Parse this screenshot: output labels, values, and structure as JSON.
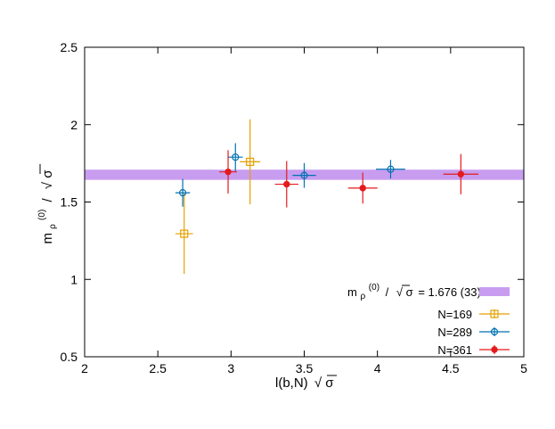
{
  "chart_data": {
    "type": "scatter",
    "xlabel": "l(b,N)",
    "xlabel_sqrt": "√",
    "xlabel_sigma": "σ",
    "ylabel_m": "m",
    "ylabel_sub": "ρ",
    "ylabel_sup": "(0)",
    "ylabel_slash": "/",
    "ylabel_sqrt": "√",
    "ylabel_sigma": "σ",
    "xlim": [
      2,
      5
    ],
    "ylim": [
      0.5,
      2.5
    ],
    "xticks": [
      "2",
      "2.5",
      "3",
      "3.5",
      "4",
      "4.5",
      "5"
    ],
    "yticks": [
      "0.5",
      "1",
      "1.5",
      "2",
      "2.5"
    ],
    "grid": false,
    "legend_position": "bottom-right",
    "band": {
      "label_m": "m",
      "label_sub": "ρ",
      "label_sup": "(0)",
      "label_slash": "/",
      "label_sqrt": "√",
      "label_sigma": "σ",
      "label_value": "= 1.676 (33)",
      "y": 1.676,
      "err": 0.033,
      "color": "#c89df0"
    },
    "series": [
      {
        "name": "N=169",
        "marker": "square-open",
        "color": "#e69f00",
        "points": [
          {
            "x": 2.68,
            "xerr": 0.06,
            "y": 1.295,
            "yerr": 0.26
          },
          {
            "x": 3.13,
            "xerr": 0.07,
            "y": 1.76,
            "yerr": 0.275
          }
        ]
      },
      {
        "name": "N=289",
        "marker": "circle-open",
        "color": "#0072b2",
        "points": [
          {
            "x": 2.67,
            "xerr": 0.05,
            "y": 1.56,
            "yerr": 0.09
          },
          {
            "x": 3.03,
            "xerr": 0.05,
            "y": 1.79,
            "yerr": 0.09
          },
          {
            "x": 3.5,
            "xerr": 0.08,
            "y": 1.672,
            "yerr": 0.08
          },
          {
            "x": 4.09,
            "xerr": 0.1,
            "y": 1.712,
            "yerr": 0.06
          }
        ]
      },
      {
        "name": "N=361",
        "marker": "circle-filled",
        "color": "#e41a1c",
        "points": [
          {
            "x": 2.98,
            "xerr": 0.06,
            "y": 1.695,
            "yerr": 0.14
          },
          {
            "x": 3.38,
            "xerr": 0.08,
            "y": 1.615,
            "yerr": 0.15
          },
          {
            "x": 3.9,
            "xerr": 0.1,
            "y": 1.59,
            "yerr": 0.1
          },
          {
            "x": 4.57,
            "xerr": 0.12,
            "y": 1.68,
            "yerr": 0.13
          }
        ]
      }
    ]
  }
}
